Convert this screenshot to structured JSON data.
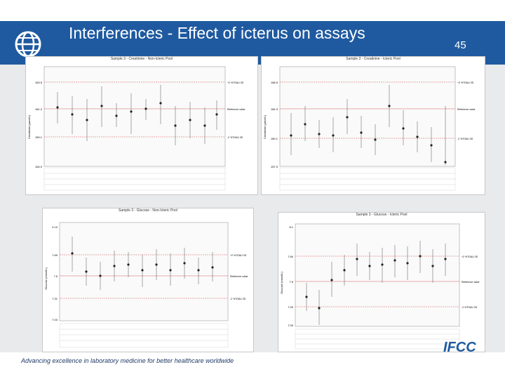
{
  "slide": {
    "title": "Interferences - Effect of icterus on assays",
    "page_number": "45",
    "footer": "Advancing excellence in laboratory medicine for better healthcare worldwide",
    "logo_text": "IFCC",
    "accent_color": "#1f5aa0"
  },
  "panels": [
    {
      "title": "Sample 3 - Creatinine - Non-Icteric Pool",
      "ylabel": "Creatinine (µmol/L)",
      "yticks": [
        "163.5",
        "161.2",
        "159.1",
        "154.9"
      ],
      "ref_labels": [
        "+2 %TGAU 3S",
        "Reference value",
        "-2 %TGAU 3S"
      ]
    },
    {
      "title": "Sample 3 - Creatinine - Icteric Pool",
      "ylabel": "Creatinine (µmol/L)",
      "yticks": [
        "168.5",
        "164.3",
        "160.1",
        "157.9"
      ],
      "ref_labels": [
        "+2 %TGAU 3S",
        "Reference value",
        "-2 %TGAU 3S"
      ]
    },
    {
      "title": "Sample 3 - Glucose - Non-Icteric Pool",
      "ylabel": "Glucose (mmol/L)",
      "yticks": [
        "4.19",
        "7.69",
        "7.5",
        "7.31",
        "7.03"
      ],
      "ref_labels": [
        "+2 %TGAU 3S",
        "Reference value",
        "-2 %TGAU 3S"
      ]
    },
    {
      "title": "Sample 3 - Glucose - Icteric Pool",
      "ylabel": "Glucose (mmol/L)",
      "yticks": [
        "8.1",
        "7.84",
        "7.5",
        "7.09",
        "7.00"
      ],
      "ref_labels": [
        "+2 %TGAU 3S",
        "Reference value",
        "-2 %TGAU 3S"
      ]
    }
  ]
}
